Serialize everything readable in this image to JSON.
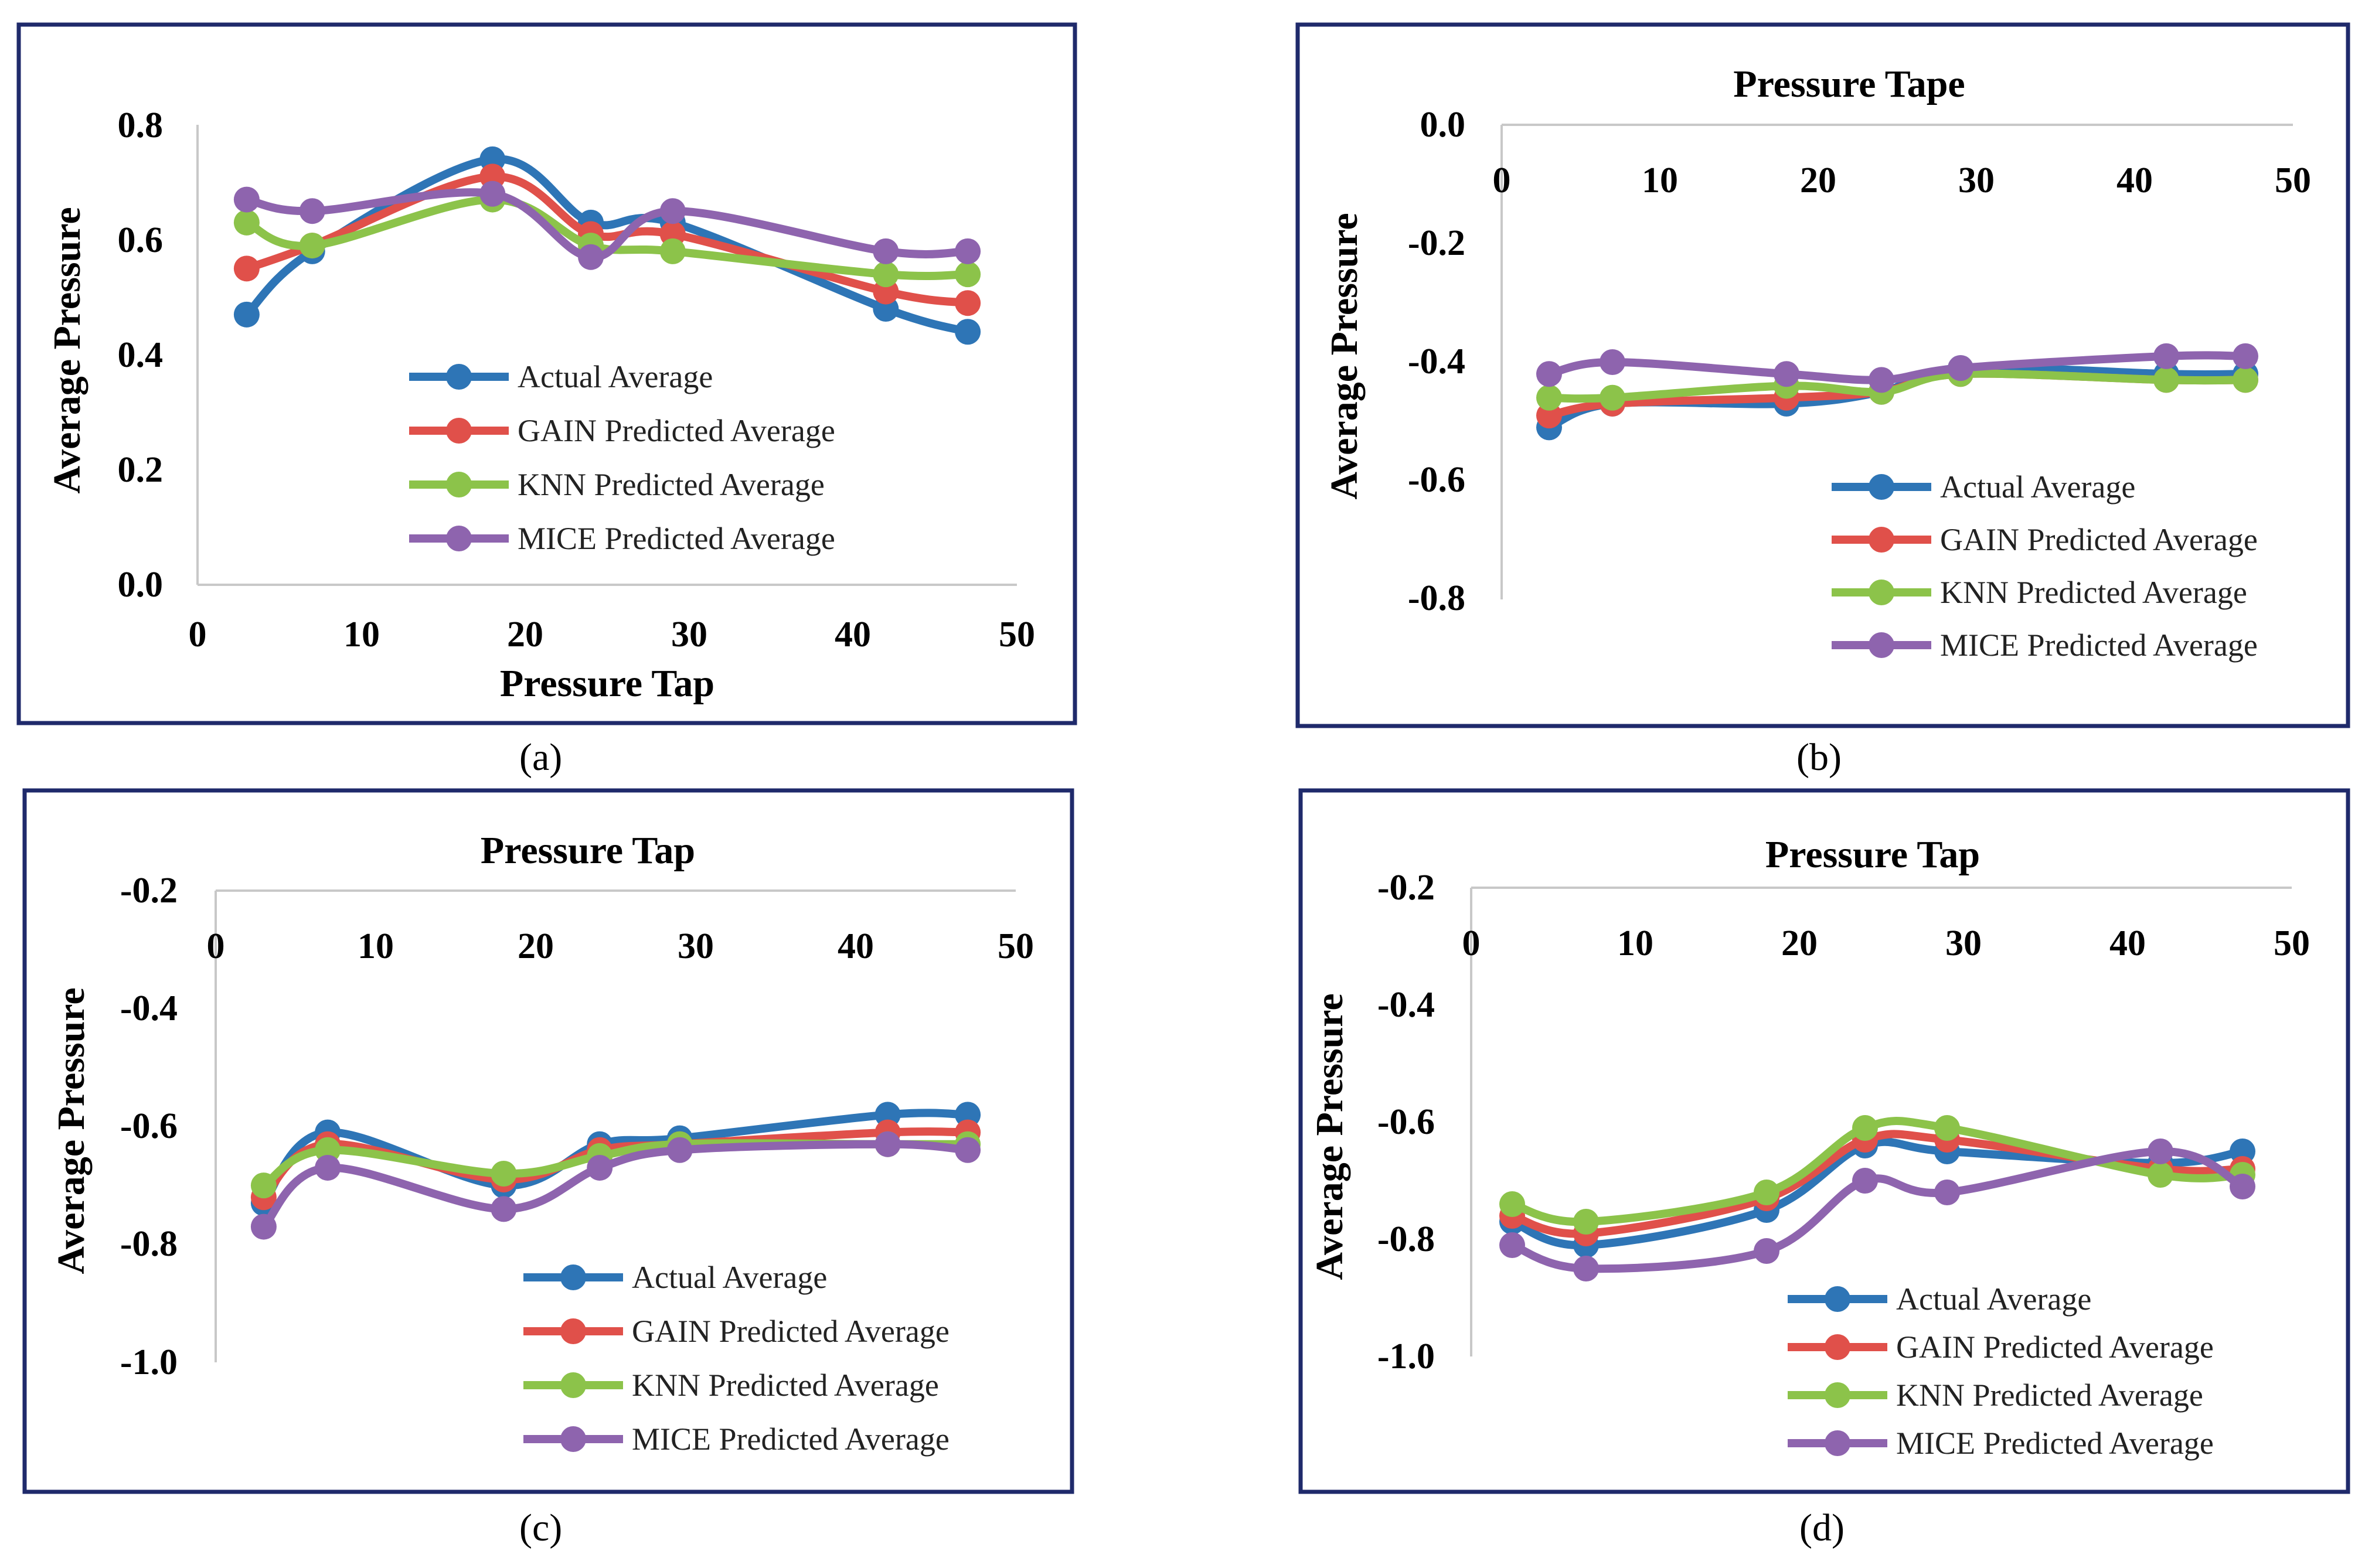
{
  "chart_data": [
    {
      "id": "a",
      "type": "line",
      "caption": "(a)",
      "title": "",
      "xlabel": "Pressure Tap",
      "ylabel": "Average Pressure",
      "x_axis_position": "bottom",
      "xlim": [
        0,
        50
      ],
      "ylim": [
        0,
        0.8
      ],
      "xticks": [
        "0",
        "10",
        "20",
        "30",
        "40",
        "50"
      ],
      "yticks": [
        "0.0",
        "0.2",
        "0.4",
        "0.6",
        "0.8"
      ],
      "x": [
        3,
        7,
        18,
        24,
        29,
        42,
        47
      ],
      "series": [
        {
          "name": "Actual Average",
          "color": "#2e75b6",
          "values": [
            0.47,
            0.58,
            0.74,
            0.63,
            0.63,
            0.48,
            0.44
          ]
        },
        {
          "name": "GAIN Predicted Average",
          "color": "#e0504a",
          "values": [
            0.55,
            0.59,
            0.71,
            0.61,
            0.61,
            0.51,
            0.49
          ]
        },
        {
          "name": "KNN Predicted Average",
          "color": "#8cc34a",
          "values": [
            0.63,
            0.59,
            0.67,
            0.59,
            0.58,
            0.54,
            0.54
          ]
        },
        {
          "name": "MICE Predicted Average",
          "color": "#8e64ae",
          "values": [
            0.67,
            0.65,
            0.68,
            0.57,
            0.65,
            0.58,
            0.58
          ]
        }
      ]
    },
    {
      "id": "b",
      "type": "line",
      "caption": "(b)",
      "title": "Pressure Tape",
      "xlabel": "",
      "ylabel": "Average Pressure",
      "x_axis_position": "top",
      "xlim": [
        0,
        50
      ],
      "ylim": [
        -0.8,
        0
      ],
      "xticks": [
        "0",
        "10",
        "20",
        "30",
        "40",
        "50"
      ],
      "yticks": [
        "0.0",
        "-0.2",
        "-0.4",
        "-0.6",
        "-0.8"
      ],
      "x": [
        3,
        7,
        18,
        24,
        29,
        42,
        47
      ],
      "series": [
        {
          "name": "Actual Average",
          "color": "#2e75b6",
          "values": [
            -0.51,
            -0.47,
            -0.47,
            -0.45,
            -0.41,
            -0.42,
            -0.42
          ]
        },
        {
          "name": "GAIN Predicted Average",
          "color": "#e0504a",
          "values": [
            -0.49,
            -0.47,
            -0.46,
            -0.45,
            -0.42,
            -0.43,
            -0.43
          ]
        },
        {
          "name": "KNN Predicted Average",
          "color": "#8cc34a",
          "values": [
            -0.46,
            -0.46,
            -0.44,
            -0.45,
            -0.42,
            -0.43,
            -0.43
          ]
        },
        {
          "name": "MICE Predicted Average",
          "color": "#8e64ae",
          "values": [
            -0.42,
            -0.4,
            -0.42,
            -0.43,
            -0.41,
            -0.39,
            -0.39
          ]
        }
      ]
    },
    {
      "id": "c",
      "type": "line",
      "caption": "(c)",
      "title": "Pressure Tap",
      "xlabel": "",
      "ylabel": "Average Pressure",
      "x_axis_position": "top",
      "xlim": [
        0,
        50
      ],
      "ylim": [
        -1.0,
        -0.2
      ],
      "xticks": [
        "0",
        "10",
        "20",
        "30",
        "40",
        "50"
      ],
      "yticks": [
        "-0.2",
        "-0.4",
        "-0.6",
        "-0.8",
        "-1.0"
      ],
      "x": [
        3,
        7,
        18,
        24,
        29,
        42,
        47
      ],
      "series": [
        {
          "name": "Actual Average",
          "color": "#2e75b6",
          "values": [
            -0.73,
            -0.61,
            -0.7,
            -0.63,
            -0.62,
            -0.58,
            -0.58
          ]
        },
        {
          "name": "GAIN Predicted Average",
          "color": "#e0504a",
          "values": [
            -0.72,
            -0.63,
            -0.69,
            -0.64,
            -0.63,
            -0.61,
            -0.61
          ]
        },
        {
          "name": "KNN Predicted Average",
          "color": "#8cc34a",
          "values": [
            -0.7,
            -0.64,
            -0.68,
            -0.65,
            -0.63,
            -0.63,
            -0.63
          ]
        },
        {
          "name": "MICE Predicted Average",
          "color": "#8e64ae",
          "values": [
            -0.77,
            -0.67,
            -0.74,
            -0.67,
            -0.64,
            -0.63,
            -0.64
          ]
        }
      ]
    },
    {
      "id": "d",
      "type": "line",
      "caption": "(d)",
      "title": "Pressure Tap",
      "xlabel": "",
      "ylabel": "Average Pressure",
      "x_axis_position": "top",
      "xlim": [
        0,
        50
      ],
      "ylim": [
        -1.0,
        -0.2
      ],
      "xticks": [
        "0",
        "10",
        "20",
        "30",
        "40",
        "50"
      ],
      "yticks": [
        "-0.2",
        "-0.4",
        "-0.6",
        "-0.8",
        "-1.0"
      ],
      "x": [
        2.5,
        7,
        18,
        24,
        29,
        42,
        47
      ],
      "series": [
        {
          "name": "Actual Average",
          "color": "#2e75b6",
          "values": [
            -0.77,
            -0.81,
            -0.75,
            -0.64,
            -0.65,
            -0.67,
            -0.65
          ]
        },
        {
          "name": "GAIN Predicted Average",
          "color": "#e0504a",
          "values": [
            -0.76,
            -0.79,
            -0.73,
            -0.63,
            -0.63,
            -0.68,
            -0.68
          ]
        },
        {
          "name": "KNN Predicted Average",
          "color": "#8cc34a",
          "values": [
            -0.74,
            -0.77,
            -0.72,
            -0.61,
            -0.61,
            -0.69,
            -0.69
          ]
        },
        {
          "name": "MICE Predicted Average",
          "color": "#8e64ae",
          "values": [
            -0.81,
            -0.85,
            -0.82,
            -0.7,
            -0.72,
            -0.65,
            -0.71
          ]
        }
      ]
    }
  ]
}
